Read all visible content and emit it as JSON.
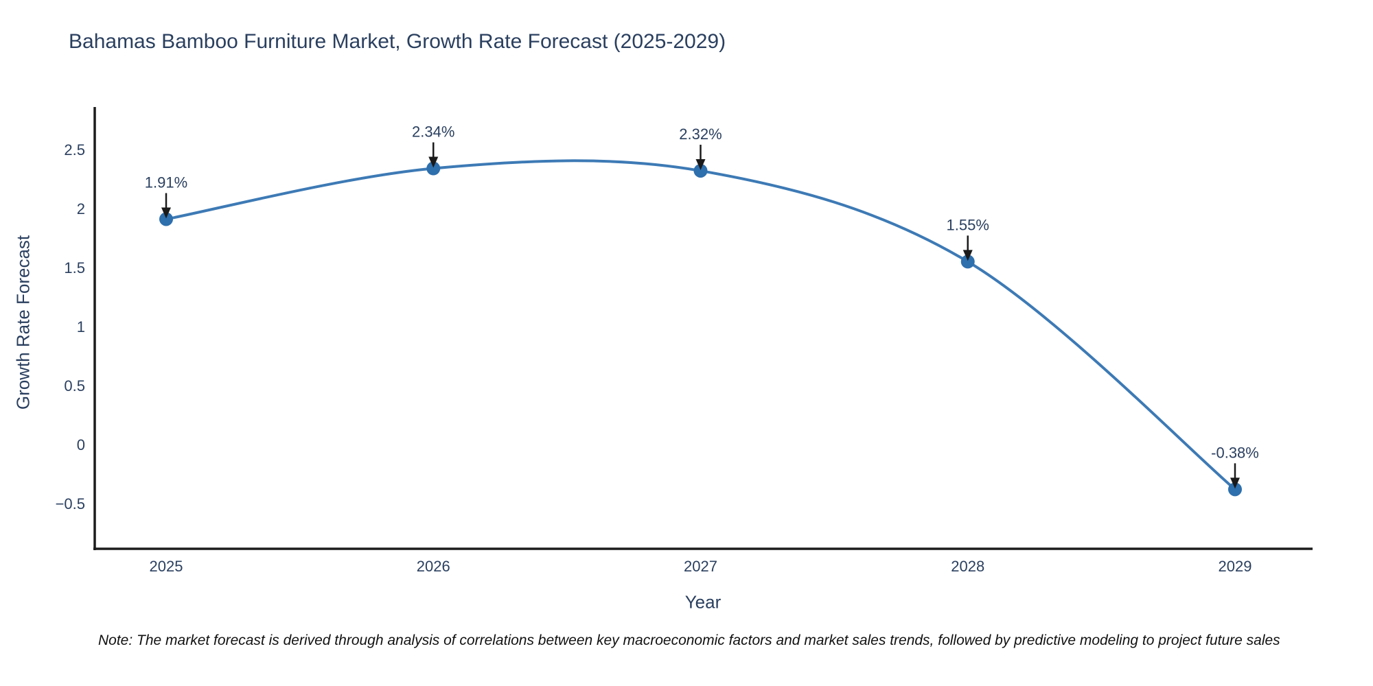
{
  "chart_data": {
    "type": "line",
    "title": "Bahamas Bamboo Furniture Market, Growth Rate Forecast (2025-2029)",
    "xlabel": "Year",
    "ylabel": "Growth Rate Forecast",
    "x": [
      2025,
      2026,
      2027,
      2028,
      2029
    ],
    "series": [
      {
        "name": "Growth Rate Forecast",
        "values": [
          1.91,
          2.34,
          2.32,
          1.55,
          -0.38
        ],
        "point_labels": [
          "1.91%",
          "2.34%",
          "2.32%",
          "1.55%",
          "-0.38%"
        ]
      }
    ],
    "yticks": [
      2.5,
      2,
      1.5,
      1,
      0.5,
      0,
      -0.5
    ],
    "ytick_labels": [
      "2.5",
      "2",
      "1.5",
      "1",
      "0.5",
      "0",
      "−0.5"
    ],
    "ylim": [
      -0.9,
      2.85
    ],
    "grid": false,
    "legend_position": "none",
    "line_shape": "spline",
    "note": "Note: The market forecast is derived through analysis of correlations between key macroeconomic factors and market sales trends, followed by predictive modeling to project future sales",
    "colors": {
      "line": "#3d7ab5",
      "marker": "#2e6fad",
      "axis": "#1c1c1c",
      "text": "#2a3f5f",
      "arrow": "#1a1a1a",
      "note_text": "#111111",
      "background": "#ffffff"
    }
  }
}
